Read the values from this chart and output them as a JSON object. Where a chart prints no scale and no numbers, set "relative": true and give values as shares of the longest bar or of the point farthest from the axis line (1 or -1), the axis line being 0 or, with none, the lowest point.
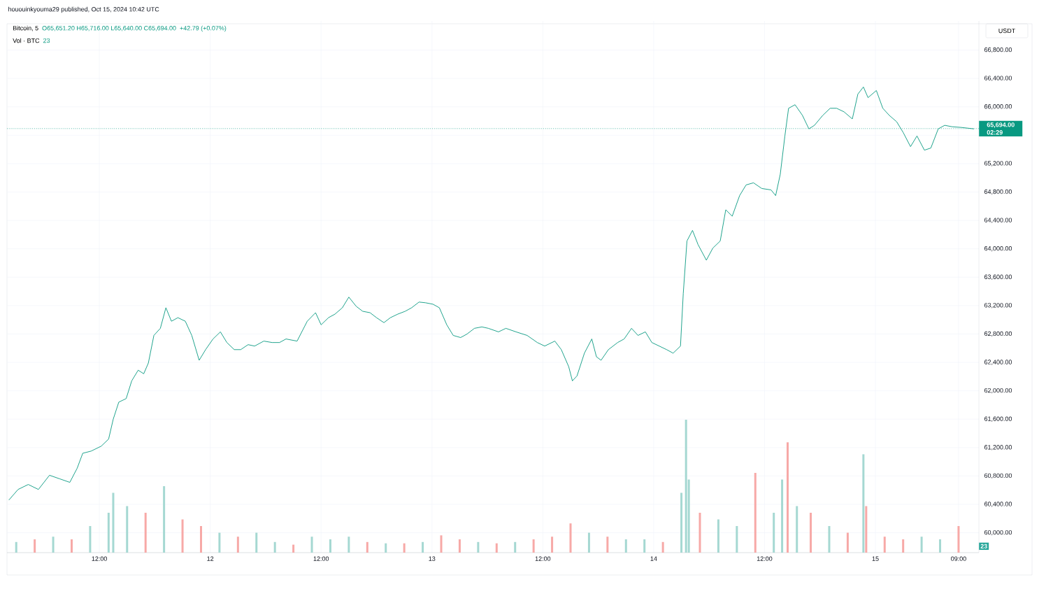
{
  "chart_data": [
    {
      "type": "line",
      "title": "Bitcoin, 5",
      "ylabel": "USDT",
      "color": "#089981",
      "marker": "none",
      "line_style": "solid",
      "grid": true,
      "annotations": [
        "hououinkyouma29 published, Oct 15, 2024 10:42 UTC",
        "O65,651.20 H65,716.00 L65,640.00 C65,694.00",
        "+42.79 (+0.07%)",
        "02:29"
      ],
      "x": [
        "2024-10-11T02:12",
        "2024-10-11T03:12",
        "2024-10-11T04:18",
        "2024-10-11T05:24",
        "2024-10-11T06:36",
        "2024-10-11T07:42",
        "2024-10-11T08:48",
        "2024-10-11T09:36",
        "2024-10-11T10:12",
        "2024-10-11T11:06",
        "2024-10-11T12:12",
        "2024-10-11T13:00",
        "2024-10-11T13:30",
        "2024-10-11T14:06",
        "2024-10-11T14:54",
        "2024-10-11T15:30",
        "2024-10-11T16:12",
        "2024-10-11T16:48",
        "2024-10-11T17:18",
        "2024-10-11T17:54",
        "2024-10-11T18:36",
        "2024-10-11T19:12",
        "2024-10-11T19:48",
        "2024-10-11T20:30",
        "2024-10-11T21:18",
        "2024-10-11T22:00",
        "2024-10-11T22:48",
        "2024-10-11T23:30",
        "2024-10-12T00:18",
        "2024-10-12T01:06",
        "2024-10-12T01:48",
        "2024-10-12T02:36",
        "2024-10-12T03:18",
        "2024-10-12T04:06",
        "2024-10-12T04:48",
        "2024-10-12T05:48",
        "2024-10-12T06:42",
        "2024-10-12T07:30",
        "2024-10-12T08:12",
        "2024-10-12T09:24",
        "2024-10-12T10:30",
        "2024-10-12T11:24",
        "2024-10-12T12:00",
        "2024-10-12T12:48",
        "2024-10-12T13:30",
        "2024-10-12T14:18",
        "2024-10-12T15:00",
        "2024-10-12T15:48",
        "2024-10-12T16:30",
        "2024-10-12T17:18",
        "2024-10-12T18:00",
        "2024-10-12T18:48",
        "2024-10-12T19:30",
        "2024-10-12T20:18",
        "2024-10-12T21:06",
        "2024-10-12T21:48",
        "2024-10-12T22:36",
        "2024-10-12T23:18",
        "2024-10-13T00:06",
        "2024-10-13T00:48",
        "2024-10-13T01:36",
        "2024-10-13T02:18",
        "2024-10-13T03:06",
        "2024-10-13T03:48",
        "2024-10-13T04:36",
        "2024-10-13T05:24",
        "2024-10-13T06:06",
        "2024-10-13T07:12",
        "2024-10-13T08:00",
        "2024-10-13T09:06",
        "2024-10-13T10:18",
        "2024-10-13T11:24",
        "2024-10-13T12:12",
        "2024-10-13T13:18",
        "2024-10-13T14:00",
        "2024-10-13T14:48",
        "2024-10-13T15:12",
        "2024-10-13T15:42",
        "2024-10-13T16:30",
        "2024-10-13T17:18",
        "2024-10-13T17:48",
        "2024-10-13T18:18",
        "2024-10-13T19:06",
        "2024-10-13T20:06",
        "2024-10-13T20:48",
        "2024-10-13T21:36",
        "2024-10-13T22:18",
        "2024-10-13T23:06",
        "2024-10-13T23:48",
        "2024-10-14T00:36",
        "2024-10-14T01:24",
        "2024-10-14T02:06",
        "2024-10-14T02:54",
        "2024-10-14T03:12",
        "2024-10-14T03:36",
        "2024-10-14T04:12",
        "2024-10-14T04:48",
        "2024-10-14T05:42",
        "2024-10-14T06:24",
        "2024-10-14T07:12",
        "2024-10-14T07:48",
        "2024-10-14T08:30",
        "2024-10-14T09:18",
        "2024-10-14T10:00",
        "2024-10-14T10:48",
        "2024-10-14T11:42",
        "2024-10-14T12:42",
        "2024-10-14T13:12",
        "2024-10-14T13:42",
        "2024-10-14T14:12",
        "2024-10-14T14:36",
        "2024-10-14T15:18",
        "2024-10-14T16:06",
        "2024-10-14T16:48",
        "2024-10-14T17:24",
        "2024-10-14T18:18",
        "2024-10-14T19:06",
        "2024-10-14T19:48",
        "2024-10-14T20:36",
        "2024-10-14T21:30",
        "2024-10-14T22:06",
        "2024-10-14T22:42",
        "2024-10-14T23:12",
        "2024-10-15T00:06",
        "2024-10-15T00:48",
        "2024-10-15T01:30",
        "2024-10-15T02:18",
        "2024-10-15T03:00",
        "2024-10-15T03:48",
        "2024-10-15T04:30",
        "2024-10-15T05:18",
        "2024-10-15T06:00",
        "2024-10-15T06:48",
        "2024-10-15T07:30",
        "2024-10-15T08:18",
        "2024-10-15T09:18",
        "2024-10-15T10:40"
      ],
      "values": [
        60460,
        60610,
        60680,
        60610,
        60810,
        60760,
        60710,
        60910,
        61120,
        61150,
        61220,
        61320,
        61600,
        61840,
        61890,
        62140,
        62290,
        62240,
        62390,
        62780,
        62880,
        63170,
        62980,
        63030,
        62980,
        62780,
        62430,
        62580,
        62730,
        62830,
        62680,
        62580,
        62580,
        62650,
        62630,
        62700,
        62680,
        62680,
        62730,
        62700,
        62980,
        63100,
        62930,
        63030,
        63080,
        63170,
        63320,
        63190,
        63120,
        63100,
        63030,
        62960,
        63030,
        63080,
        63120,
        63170,
        63250,
        63240,
        63220,
        63170,
        62930,
        62780,
        62750,
        62800,
        62880,
        62900,
        62880,
        62830,
        62880,
        62830,
        62780,
        62680,
        62630,
        62700,
        62580,
        62340,
        62140,
        62210,
        62530,
        62730,
        62480,
        62430,
        62580,
        62680,
        62730,
        62880,
        62780,
        62830,
        62680,
        62630,
        62580,
        62530,
        62630,
        63370,
        64110,
        64260,
        64060,
        63840,
        64010,
        64110,
        64550,
        64460,
        64750,
        64900,
        64930,
        64850,
        64830,
        64750,
        65050,
        65590,
        65980,
        66030,
        65880,
        65690,
        65740,
        65880,
        65980,
        65980,
        65930,
        65830,
        66180,
        66280,
        66130,
        66230,
        65980,
        65880,
        65790,
        65640,
        65440,
        65590,
        65390,
        65420,
        65690,
        65740,
        65720,
        65710,
        65690
      ],
      "xlim": [
        "2024-10-11T02:00",
        "2024-10-15T11:12"
      ],
      "ylim": [
        59720,
        67210
      ],
      "xticks": [
        {
          "value": "2024-10-11T12:00",
          "label": "12:00"
        },
        {
          "value": "2024-10-12",
          "label": "12"
        },
        {
          "value": "2024-10-12T12:00",
          "label": "12:00"
        },
        {
          "value": "2024-10-13",
          "label": "13"
        },
        {
          "value": "2024-10-13T12:00",
          "label": "12:00"
        },
        {
          "value": "2024-10-14",
          "label": "14"
        },
        {
          "value": "2024-10-14T12:00",
          "label": "12:00"
        },
        {
          "value": "2024-10-15",
          "label": "15"
        },
        {
          "value": "2024-10-15T09:00",
          "label": "09:00"
        }
      ],
      "yticks": [
        {
          "value": 60000,
          "label": "60,000.00"
        },
        {
          "value": 60400,
          "label": "60,400.00"
        },
        {
          "value": 60800,
          "label": "60,800.00"
        },
        {
          "value": 61200,
          "label": "61,200.00"
        },
        {
          "value": 61600,
          "label": "61,600.00"
        },
        {
          "value": 62000,
          "label": "62,000.00"
        },
        {
          "value": 62400,
          "label": "62,400.00"
        },
        {
          "value": 62800,
          "label": "62,800.00"
        },
        {
          "value": 63200,
          "label": "63,200.00"
        },
        {
          "value": 63600,
          "label": "63,600.00"
        },
        {
          "value": 64000,
          "label": "64,000.00"
        },
        {
          "value": 64400,
          "label": "64,400.00"
        },
        {
          "value": 64800,
          "label": "64,800.00"
        },
        {
          "value": 65200,
          "label": "65,200.00"
        },
        {
          "value": 65600,
          "label": null
        },
        {
          "value": 66000,
          "label": "66,000.00"
        },
        {
          "value": 66400,
          "label": "66,400.00"
        },
        {
          "value": 66800,
          "label": "66,800.00"
        }
      ],
      "ref_lines": [
        {
          "axis": "y",
          "value": 65694,
          "label": "65,694.00",
          "color": "#089981",
          "line_style": "dotted"
        }
      ]
    },
    {
      "type": "bar",
      "title": "Vol · BTC",
      "relative": true,
      "tick_labels": false,
      "xlim": [
        "2024-10-11T02:00",
        "2024-10-15T11:12"
      ],
      "annotations": [
        "23",
        "23"
      ],
      "x": [
        "2024-10-11T03:00",
        "2024-10-11T05:00",
        "2024-10-11T07:00",
        "2024-10-11T09:00",
        "2024-10-11T11:00",
        "2024-10-11T13:00",
        "2024-10-11T13:30",
        "2024-10-11T15:00",
        "2024-10-11T17:00",
        "2024-10-11T19:00",
        "2024-10-11T21:00",
        "2024-10-11T23:00",
        "2024-10-12T01:00",
        "2024-10-12T03:00",
        "2024-10-12T05:00",
        "2024-10-12T07:00",
        "2024-10-12T09:00",
        "2024-10-12T11:00",
        "2024-10-12T13:00",
        "2024-10-12T15:00",
        "2024-10-12T17:00",
        "2024-10-12T19:00",
        "2024-10-12T21:00",
        "2024-10-12T23:00",
        "2024-10-13T01:00",
        "2024-10-13T03:00",
        "2024-10-13T05:00",
        "2024-10-13T07:00",
        "2024-10-13T09:00",
        "2024-10-13T11:00",
        "2024-10-13T13:00",
        "2024-10-13T15:00",
        "2024-10-13T17:00",
        "2024-10-13T19:00",
        "2024-10-13T21:00",
        "2024-10-13T23:00",
        "2024-10-14T01:00",
        "2024-10-14T03:00",
        "2024-10-14T03:30",
        "2024-10-14T03:48",
        "2024-10-14T05:00",
        "2024-10-14T07:00",
        "2024-10-14T09:00",
        "2024-10-14T11:00",
        "2024-10-14T13:00",
        "2024-10-14T13:54",
        "2024-10-14T14:30",
        "2024-10-14T15:30",
        "2024-10-14T17:00",
        "2024-10-14T19:00",
        "2024-10-14T21:00",
        "2024-10-14T22:42",
        "2024-10-14T23:00",
        "2024-10-15T01:00",
        "2024-10-15T03:00",
        "2024-10-15T05:00",
        "2024-10-15T07:00",
        "2024-10-15T09:00"
      ],
      "values": [
        0.08,
        0.1,
        0.12,
        0.1,
        0.2,
        0.3,
        0.45,
        0.35,
        0.3,
        0.5,
        0.25,
        0.2,
        0.15,
        0.12,
        0.15,
        0.08,
        0.06,
        0.12,
        0.1,
        0.12,
        0.08,
        0.07,
        0.07,
        0.08,
        0.13,
        0.1,
        0.08,
        0.07,
        0.08,
        0.1,
        0.12,
        0.22,
        0.15,
        0.12,
        0.1,
        0.1,
        0.08,
        0.45,
        1,
        0.55,
        0.3,
        0.25,
        0.2,
        0.6,
        0.3,
        0.55,
        0.83,
        0.35,
        0.3,
        0.2,
        0.15,
        0.74,
        0.35,
        0.12,
        0.1,
        0.12,
        0.1,
        0.2
      ],
      "colors": [
        "#a5d8d2",
        "#f7a9a7",
        "#a5d8d2",
        "#f7a9a7",
        "#a5d8d2",
        "#a5d8d2",
        "#a5d8d2",
        "#a5d8d2",
        "#f7a9a7",
        "#a5d8d2",
        "#f7a9a7",
        "#f7a9a7",
        "#a5d8d2",
        "#f7a9a7",
        "#a5d8d2",
        "#a5d8d2",
        "#f7a9a7",
        "#a5d8d2",
        "#a5d8d2",
        "#a5d8d2",
        "#f7a9a7",
        "#a5d8d2",
        "#f7a9a7",
        "#a5d8d2",
        "#f7a9a7",
        "#f7a9a7",
        "#a5d8d2",
        "#f7a9a7",
        "#a5d8d2",
        "#f7a9a7",
        "#f7a9a7",
        "#f7a9a7",
        "#a5d8d2",
        "#f7a9a7",
        "#a5d8d2",
        "#a5d8d2",
        "#f7a9a7",
        "#a5d8d2",
        "#a5d8d2",
        "#a5d8d2",
        "#f7a9a7",
        "#a5d8d2",
        "#a5d8d2",
        "#f7a9a7",
        "#a5d8d2",
        "#a5d8d2",
        "#f7a9a7",
        "#a5d8d2",
        "#f7a9a7",
        "#a5d8d2",
        "#f7a9a7",
        "#a5d8d2",
        "#f7a9a7",
        "#f7a9a7",
        "#f7a9a7",
        "#a5d8d2",
        "#a5d8d2",
        "#f7a9a7"
      ]
    }
  ]
}
